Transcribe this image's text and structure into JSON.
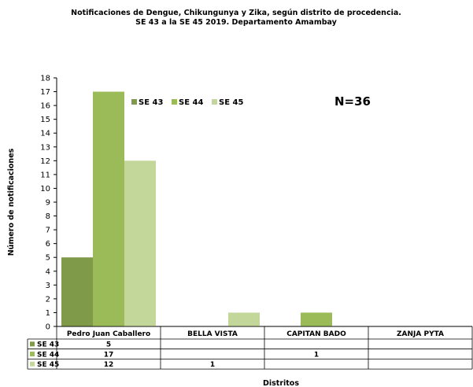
{
  "chart_data": {
    "type": "bar",
    "title_line1": "Notificaciones de Dengue, Chikungunya y Zika, según distrito de procedencia.",
    "title_line2": "SE 43 a la SE 45 2019. Departamento Amambay",
    "xlabel": "Distritos",
    "ylabel": "Número de notificaciones",
    "annotation": "N=36",
    "ylim": [
      0,
      18
    ],
    "yticks": [
      "0",
      "1",
      "2",
      "3",
      "4",
      "5",
      "6",
      "7",
      "8",
      "9",
      "10",
      "11",
      "12",
      "13",
      "14",
      "15",
      "16",
      "17",
      "18"
    ],
    "grid": false,
    "legend_position": "top-left",
    "categories": [
      "Pedro Juan Caballero",
      "BELLA VISTA",
      "CAPITAN BADO",
      "ZANJA PYTA"
    ],
    "series": [
      {
        "name": "SE 43",
        "color": "#7f9a48",
        "values": [
          5,
          0,
          0,
          0
        ],
        "labels": [
          "5",
          "",
          "",
          ""
        ]
      },
      {
        "name": "SE 44",
        "color": "#9bbb59",
        "values": [
          17,
          0,
          1,
          0
        ],
        "labels": [
          "17",
          "",
          "1",
          ""
        ]
      },
      {
        "name": "SE 45",
        "color": "#c4d79b",
        "values": [
          12,
          1,
          0,
          0
        ],
        "labels": [
          "12",
          "1",
          "",
          ""
        ]
      }
    ]
  }
}
